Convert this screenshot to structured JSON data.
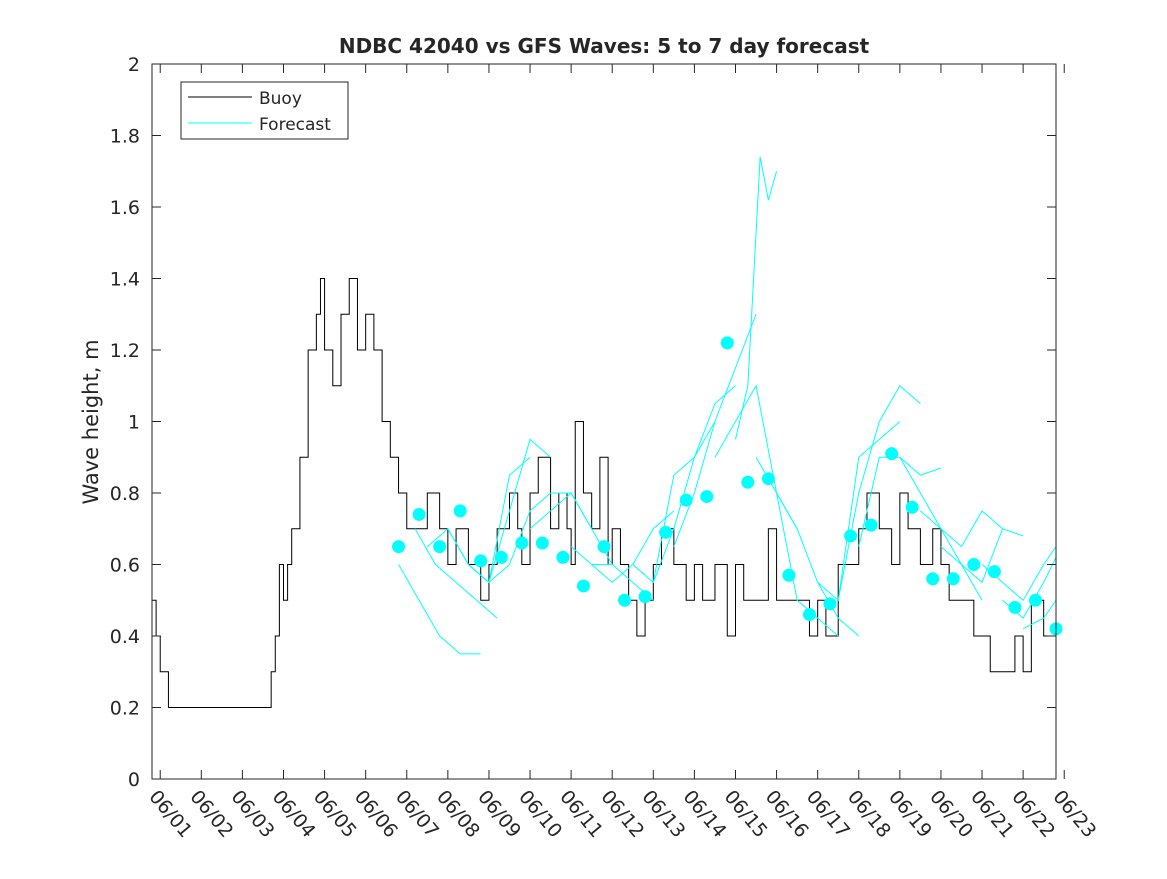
{
  "chart_data": {
    "type": "line",
    "title": "NDBC 42040 vs GFS Waves: 5 to 7 day forecast",
    "xlabel": "",
    "ylabel": "Wave height, m",
    "x_unit": "day (0 = 06/01)",
    "xlim": [
      -0.2,
      21.8
    ],
    "ylim": [
      0,
      2
    ],
    "x_ticks": [
      0,
      1,
      2,
      3,
      4,
      5,
      6,
      7,
      8,
      9,
      10,
      11,
      12,
      13,
      14,
      15,
      16,
      17,
      18,
      19,
      20,
      21,
      22
    ],
    "x_tick_labels": [
      "06/01",
      "06/02",
      "06/03",
      "06/04",
      "06/05",
      "06/06",
      "06/07",
      "06/08",
      "06/09",
      "06/10",
      "06/11",
      "06/12",
      "06/13",
      "06/14",
      "06/15",
      "06/16",
      "06/17",
      "06/18",
      "06/19",
      "06/20",
      "06/21",
      "06/22",
      "06/23"
    ],
    "y_ticks": [
      0,
      0.2,
      0.4,
      0.6,
      0.8,
      1.0,
      1.2,
      1.4,
      1.6,
      1.8,
      2.0
    ],
    "y_tick_labels": [
      "0",
      "0.2",
      "0.4",
      "0.6",
      "0.8",
      "1",
      "1.2",
      "1.4",
      "1.6",
      "1.8",
      "2"
    ],
    "grid": false,
    "legend": {
      "placement": "top-left",
      "entries": [
        "Buoy",
        "Forecast"
      ]
    },
    "colors": {
      "buoy": "#000000",
      "forecast": "#00ffff",
      "axis": "#262626"
    },
    "series": [
      {
        "name": "Buoy",
        "style": "step",
        "x": [
          -0.2,
          -0.1,
          0.0,
          0.2,
          0.3,
          0.45,
          0.5,
          0.6,
          1.0,
          1.5,
          2.0,
          2.5,
          2.7,
          2.8,
          2.9,
          3.0,
          3.1,
          3.2,
          3.4,
          3.6,
          3.8,
          3.9,
          4.0,
          4.2,
          4.4,
          4.6,
          4.8,
          5.0,
          5.2,
          5.4,
          5.6,
          5.8,
          6.0,
          6.2,
          6.5,
          6.8,
          7.0,
          7.2,
          7.5,
          7.8,
          8.0,
          8.2,
          8.5,
          8.7,
          8.8,
          9.0,
          9.2,
          9.5,
          9.7,
          9.9,
          10.0,
          10.1,
          10.3,
          10.5,
          10.7,
          10.9,
          11.0,
          11.2,
          11.4,
          11.6,
          11.8,
          12.0,
          12.2,
          12.5,
          12.8,
          13.0,
          13.2,
          13.5,
          13.8,
          14.0,
          14.2,
          14.5,
          14.8,
          15.0,
          15.2,
          15.5,
          15.8,
          16.0,
          16.2,
          16.5,
          16.8,
          17.0,
          17.2,
          17.5,
          17.8,
          18.0,
          18.2,
          18.5,
          18.8,
          19.0,
          19.2,
          19.5,
          19.8,
          20.0,
          20.2,
          20.5,
          20.8,
          21.0,
          21.2,
          21.5,
          21.8
        ],
        "values": [
          0.5,
          0.4,
          0.3,
          0.2,
          0.2,
          0.2,
          0.2,
          0.2,
          0.2,
          0.2,
          0.2,
          0.2,
          0.3,
          0.4,
          0.6,
          0.5,
          0.6,
          0.7,
          0.9,
          1.2,
          1.3,
          1.4,
          1.2,
          1.1,
          1.3,
          1.4,
          1.2,
          1.3,
          1.2,
          1.0,
          0.9,
          0.8,
          0.7,
          0.7,
          0.8,
          0.7,
          0.6,
          0.7,
          0.6,
          0.5,
          0.6,
          0.7,
          0.8,
          0.7,
          0.6,
          0.8,
          0.9,
          0.7,
          0.8,
          0.7,
          0.6,
          1.0,
          0.8,
          0.7,
          0.9,
          0.6,
          0.7,
          0.6,
          0.5,
          0.4,
          0.5,
          0.6,
          0.7,
          0.6,
          0.5,
          0.6,
          0.5,
          0.6,
          0.4,
          0.6,
          0.5,
          0.5,
          0.7,
          0.5,
          0.5,
          0.5,
          0.4,
          0.5,
          0.4,
          0.6,
          0.6,
          0.7,
          0.8,
          0.7,
          0.6,
          0.8,
          0.7,
          0.6,
          0.7,
          0.6,
          0.5,
          0.5,
          0.4,
          0.4,
          0.3,
          0.3,
          0.4,
          0.3,
          0.5,
          0.4,
          0.4
        ]
      },
      {
        "name": "Forecast",
        "style": "multi-line",
        "segments": [
          {
            "x": [
              5.8,
              6.3,
              6.8,
              7.3,
              7.8
            ],
            "values": [
              0.6,
              0.5,
              0.4,
              0.35,
              0.35
            ]
          },
          {
            "x": [
              6.2,
              6.7,
              7.2,
              7.7,
              8.2
            ],
            "values": [
              0.7,
              0.6,
              0.55,
              0.5,
              0.45
            ]
          },
          {
            "x": [
              6.5,
              7.0,
              7.5,
              8.0,
              8.5
            ],
            "values": [
              0.65,
              0.7,
              0.6,
              0.55,
              0.6
            ]
          },
          {
            "x": [
              7.0,
              7.5,
              8.0,
              8.5,
              9.0
            ],
            "values": [
              0.7,
              0.6,
              0.55,
              0.85,
              0.9
            ]
          },
          {
            "x": [
              7.5,
              8.0,
              8.5,
              9.0,
              9.5
            ],
            "values": [
              0.6,
              0.55,
              0.75,
              0.95,
              0.9
            ]
          },
          {
            "x": [
              8.5,
              9.0,
              9.5,
              10.0,
              10.5
            ],
            "values": [
              0.6,
              0.75,
              0.8,
              0.8,
              0.7
            ]
          },
          {
            "x": [
              9.0,
              9.5,
              10.0,
              10.5,
              11.0
            ],
            "values": [
              0.7,
              0.75,
              0.8,
              0.7,
              0.6
            ]
          },
          {
            "x": [
              10.0,
              10.5,
              11.0,
              11.5,
              12.0
            ],
            "values": [
              0.65,
              0.6,
              0.6,
              0.55,
              0.5
            ]
          },
          {
            "x": [
              10.5,
              11.0,
              11.5,
              12.0,
              12.5
            ],
            "values": [
              0.6,
              0.55,
              0.6,
              0.7,
              0.75
            ]
          },
          {
            "x": [
              11.5,
              12.0,
              12.5,
              13.0,
              13.5
            ],
            "values": [
              0.6,
              0.55,
              0.85,
              0.9,
              1.0
            ]
          },
          {
            "x": [
              12.0,
              12.5,
              13.0,
              13.5,
              14.0
            ],
            "values": [
              0.55,
              0.7,
              0.9,
              1.05,
              1.1
            ]
          },
          {
            "x": [
              12.5,
              13.0,
              13.5,
              14.0,
              14.5
            ],
            "values": [
              0.65,
              0.8,
              1.0,
              1.15,
              1.3
            ]
          },
          {
            "x": [
              13.5,
              14.0,
              14.5,
              15.0,
              15.5
            ],
            "values": [
              0.9,
              1.0,
              1.1,
              0.8,
              0.7
            ]
          },
          {
            "x": [
              14.0,
              14.3,
              14.6,
              14.8,
              15.0
            ],
            "values": [
              0.95,
              1.1,
              1.74,
              1.62,
              1.7
            ]
          },
          {
            "x": [
              14.5,
              15.0,
              15.5,
              16.0,
              16.5
            ],
            "values": [
              0.9,
              0.8,
              0.5,
              0.45,
              0.4
            ]
          },
          {
            "x": [
              15.0,
              15.5,
              16.0,
              16.5,
              17.0
            ],
            "values": [
              0.8,
              0.7,
              0.55,
              0.45,
              0.4
            ]
          },
          {
            "x": [
              16.0,
              16.5,
              17.0,
              17.5,
              18.0
            ],
            "values": [
              0.55,
              0.5,
              0.9,
              0.95,
              1.0
            ]
          },
          {
            "x": [
              16.5,
              17.0,
              17.5,
              18.0,
              18.5
            ],
            "values": [
              0.5,
              0.8,
              1.0,
              1.1,
              1.05
            ]
          },
          {
            "x": [
              17.0,
              17.5,
              18.0,
              18.5,
              19.0
            ],
            "values": [
              0.65,
              0.9,
              0.9,
              0.85,
              0.87
            ]
          },
          {
            "x": [
              18.0,
              18.5,
              19.0,
              19.5,
              20.0
            ],
            "values": [
              0.9,
              0.8,
              0.7,
              0.6,
              0.5
            ]
          },
          {
            "x": [
              18.5,
              19.0,
              19.5,
              20.0,
              20.5
            ],
            "values": [
              0.75,
              0.7,
              0.65,
              0.75,
              0.7
            ]
          },
          {
            "x": [
              19.0,
              19.5,
              20.0,
              20.5,
              21.0
            ],
            "values": [
              0.65,
              0.6,
              0.55,
              0.7,
              0.68
            ]
          },
          {
            "x": [
              20.0,
              20.5,
              21.0,
              21.5,
              21.8
            ],
            "values": [
              0.6,
              0.55,
              0.5,
              0.6,
              0.65
            ]
          },
          {
            "x": [
              20.5,
              21.0,
              21.5,
              21.8
            ],
            "values": [
              0.5,
              0.45,
              0.55,
              0.62
            ]
          },
          {
            "x": [
              21.0,
              21.5,
              21.8
            ],
            "values": [
              0.42,
              0.45,
              0.5
            ]
          }
        ],
        "markers": {
          "x": [
            5.8,
            6.3,
            6.8,
            7.3,
            7.8,
            8.3,
            8.8,
            9.3,
            9.8,
            10.3,
            10.8,
            11.3,
            11.8,
            12.3,
            12.8,
            13.3,
            13.8,
            14.3,
            14.8,
            15.3,
            15.8,
            16.3,
            16.8,
            17.3,
            17.8,
            18.3,
            18.8,
            19.3,
            19.8,
            20.3,
            20.8,
            21.3,
            21.8
          ],
          "values": [
            0.65,
            0.74,
            0.65,
            0.75,
            0.61,
            0.62,
            0.66,
            0.66,
            0.62,
            0.54,
            0.65,
            0.5,
            0.51,
            0.69,
            0.78,
            0.79,
            1.22,
            0.83,
            0.84,
            0.57,
            0.46,
            0.49,
            0.68,
            0.71,
            0.91,
            0.76,
            0.56,
            0.56,
            0.6,
            0.58,
            0.48,
            0.5,
            0.42
          ]
        }
      }
    ]
  }
}
